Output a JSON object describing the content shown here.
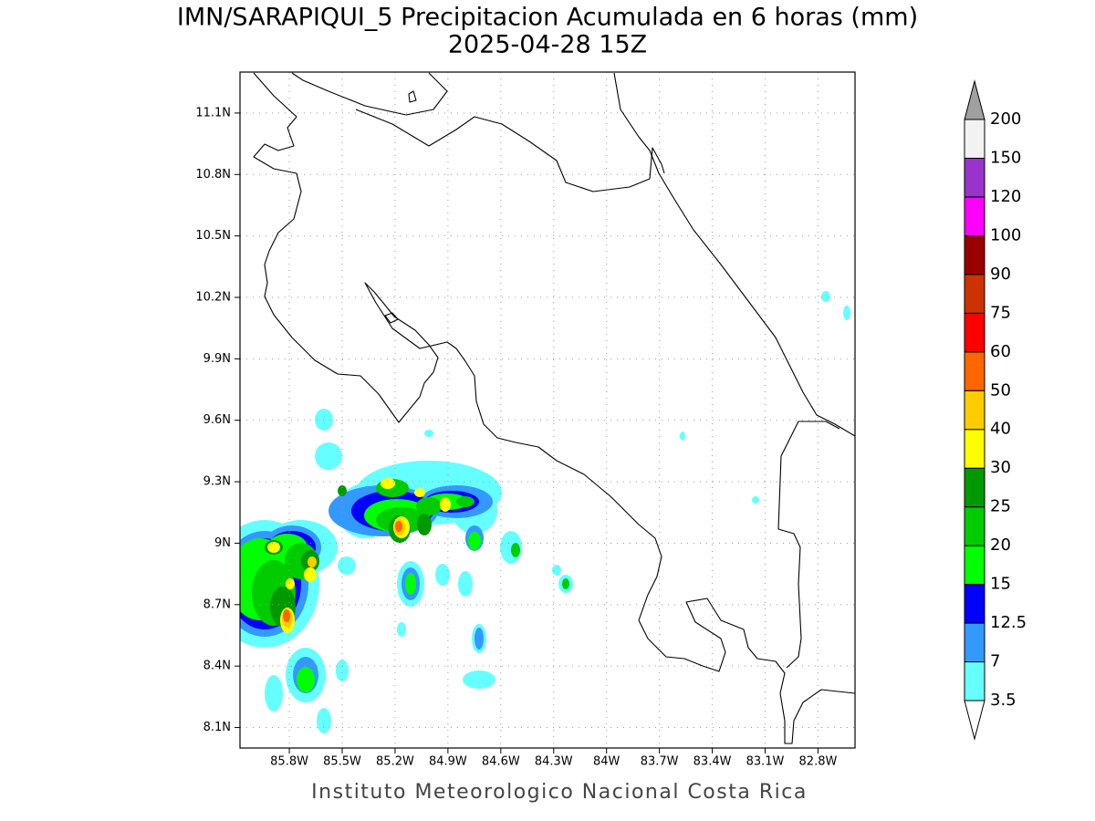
{
  "title": "IMN/SARAPIQUI_5 Precipitacion Acumulada en 6 horas (mm)",
  "subtitle": "2025-04-28 15Z",
  "footer": "Instituto Meteorologico Nacional Costa Rica",
  "map": {
    "xlim": [
      -86.08,
      -82.59
    ],
    "ylim": [
      8.0,
      11.3
    ],
    "grid": true,
    "xticks": [
      {
        "value": -85.8,
        "label": "85.8W"
      },
      {
        "value": -85.5,
        "label": "85.5W"
      },
      {
        "value": -85.2,
        "label": "85.2W"
      },
      {
        "value": -84.9,
        "label": "84.9W"
      },
      {
        "value": -84.6,
        "label": "84.6W"
      },
      {
        "value": -84.3,
        "label": "84.3W"
      },
      {
        "value": -84.0,
        "label": "84W"
      },
      {
        "value": -83.7,
        "label": "83.7W"
      },
      {
        "value": -83.4,
        "label": "83.4W"
      },
      {
        "value": -83.1,
        "label": "83.1W"
      },
      {
        "value": -82.8,
        "label": "82.8W"
      }
    ],
    "yticks": [
      {
        "value": 8.1,
        "label": "8.1N"
      },
      {
        "value": 8.4,
        "label": "8.4N"
      },
      {
        "value": 8.7,
        "label": "8.7N"
      },
      {
        "value": 9.0,
        "label": "9N"
      },
      {
        "value": 9.3,
        "label": "9.3N"
      },
      {
        "value": 9.6,
        "label": "9.6N"
      },
      {
        "value": 9.9,
        "label": "9.9N"
      },
      {
        "value": 10.2,
        "label": "10.2N"
      },
      {
        "value": 10.5,
        "label": "10.5N"
      },
      {
        "value": 10.8,
        "label": "10.8N"
      },
      {
        "value": 11.1,
        "label": "11.1N"
      }
    ]
  },
  "colorbar": {
    "levels": [
      3.5,
      7,
      12.5,
      15,
      20,
      25,
      30,
      40,
      50,
      60,
      75,
      90,
      100,
      120,
      150,
      200
    ],
    "colors": [
      "#66ffff",
      "#3399ff",
      "#0000ff",
      "#00ff00",
      "#00cc00",
      "#009900",
      "#ffff00",
      "#ffcc00",
      "#ff6600",
      "#ff0000",
      "#cc3300",
      "#990000",
      "#ff00ff",
      "#9933cc",
      "#f2f2f2"
    ],
    "under_color": "#ffffff",
    "over_color": "#a0a0a0"
  }
}
